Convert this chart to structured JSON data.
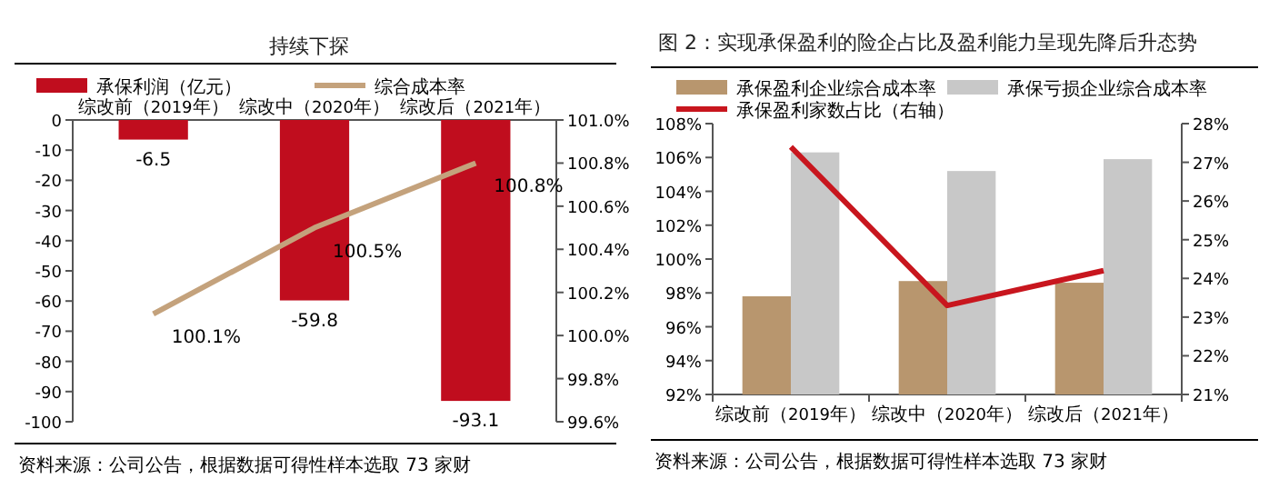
{
  "chart_data": [
    {
      "type": "bar",
      "title": "持续下探",
      "categories": [
        "综改前（2019年）",
        "综改中（2020年）",
        "综改后（2021年）"
      ],
      "series": [
        {
          "name": "承保利润（亿元）",
          "type": "bar",
          "color": "#c00d1e",
          "values": [
            -6.5,
            -59.8,
            -93.1
          ],
          "value_labels": [
            "-6.5",
            "-59.8",
            "-93.1"
          ]
        },
        {
          "name": "综合成本率",
          "type": "line",
          "axis": "y2",
          "color": "#c4a27c",
          "values": [
            100.1,
            100.5,
            100.8
          ],
          "value_labels": [
            "100.1%",
            "100.5%",
            "100.8%"
          ]
        }
      ],
      "ylim": [
        -100,
        0
      ],
      "yticks": [
        0,
        -10,
        -20,
        -30,
        -40,
        -50,
        -60,
        -70,
        -80,
        -90,
        -100
      ],
      "y2lim": [
        99.6,
        101.0
      ],
      "y2ticks": [
        {
          "value": 101.0,
          "label": "101.0%"
        },
        {
          "value": 100.8,
          "label": "100.8%"
        },
        {
          "value": 100.6,
          "label": "100.6%"
        },
        {
          "value": 100.4,
          "label": "100.4%"
        },
        {
          "value": 100.2,
          "label": "100.2%"
        },
        {
          "value": 100.0,
          "label": "100.0%"
        },
        {
          "value": 99.8,
          "label": "99.8%"
        },
        {
          "value": 99.6,
          "label": "99.6%"
        }
      ],
      "legend": "top",
      "grid": false,
      "marker": "none",
      "annotations": [
        "资料来源：公司公告，根据数据可得性样本选取 73 家财"
      ]
    },
    {
      "type": "bar",
      "title": "图 2：实现承保盈利的险企占比及盈利能力呈现先降后升态势",
      "categories": [
        "综改前（2019年）",
        "综改中（2020年）",
        "综改后（2021年）"
      ],
      "series": [
        {
          "name": "承保盈利企业综合成本率",
          "type": "bar",
          "color": "#b8966e",
          "values": [
            97.8,
            98.7,
            98.6
          ]
        },
        {
          "name": "承保亏损企业综合成本率",
          "type": "bar",
          "color": "#c8c8c8",
          "values": [
            106.3,
            105.2,
            105.9
          ]
        },
        {
          "name": "承保盈利家数占比（右轴）",
          "type": "line",
          "axis": "y2",
          "color": "#c8161e",
          "values": [
            27.4,
            23.3,
            24.2
          ]
        }
      ],
      "ylim": [
        92,
        108
      ],
      "yticks": [
        {
          "value": 92,
          "label": "92%"
        },
        {
          "value": 94,
          "label": "94%"
        },
        {
          "value": 96,
          "label": "96%"
        },
        {
          "value": 98,
          "label": "98%"
        },
        {
          "value": 100,
          "label": "100%"
        },
        {
          "value": 102,
          "label": "102%"
        },
        {
          "value": 104,
          "label": "104%"
        },
        {
          "value": 106,
          "label": "106%"
        },
        {
          "value": 108,
          "label": "108%"
        }
      ],
      "y2lim": [
        21,
        28
      ],
      "y2ticks": [
        {
          "value": 21,
          "label": "21%"
        },
        {
          "value": 22,
          "label": "22%"
        },
        {
          "value": 23,
          "label": "23%"
        },
        {
          "value": 24,
          "label": "24%"
        },
        {
          "value": 25,
          "label": "25%"
        },
        {
          "value": 26,
          "label": "26%"
        },
        {
          "value": 27,
          "label": "27%"
        },
        {
          "value": 28,
          "label": "28%"
        }
      ],
      "legend": "top",
      "grid": false,
      "marker": "none",
      "annotations": [
        "资料来源：公司公告，根据数据可得性样本选取 73 家财"
      ]
    }
  ]
}
